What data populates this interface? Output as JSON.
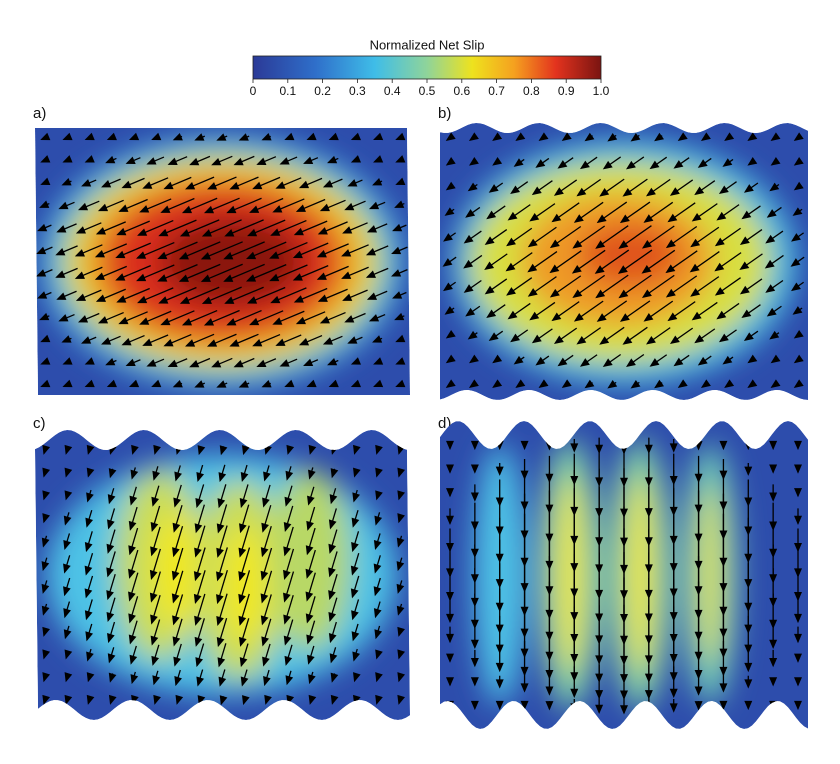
{
  "colorbar": {
    "title": "Normalized Net Slip",
    "ticks": [
      0,
      0.1,
      0.2,
      0.3,
      0.4,
      0.5,
      0.6,
      0.7,
      0.8,
      0.9,
      {
        "value": 1,
        "label": "1.0"
      }
    ]
  },
  "panels": [
    {
      "label": "a)"
    },
    {
      "label": "b)"
    },
    {
      "label": "c)"
    },
    {
      "label": "d)"
    }
  ]
}
